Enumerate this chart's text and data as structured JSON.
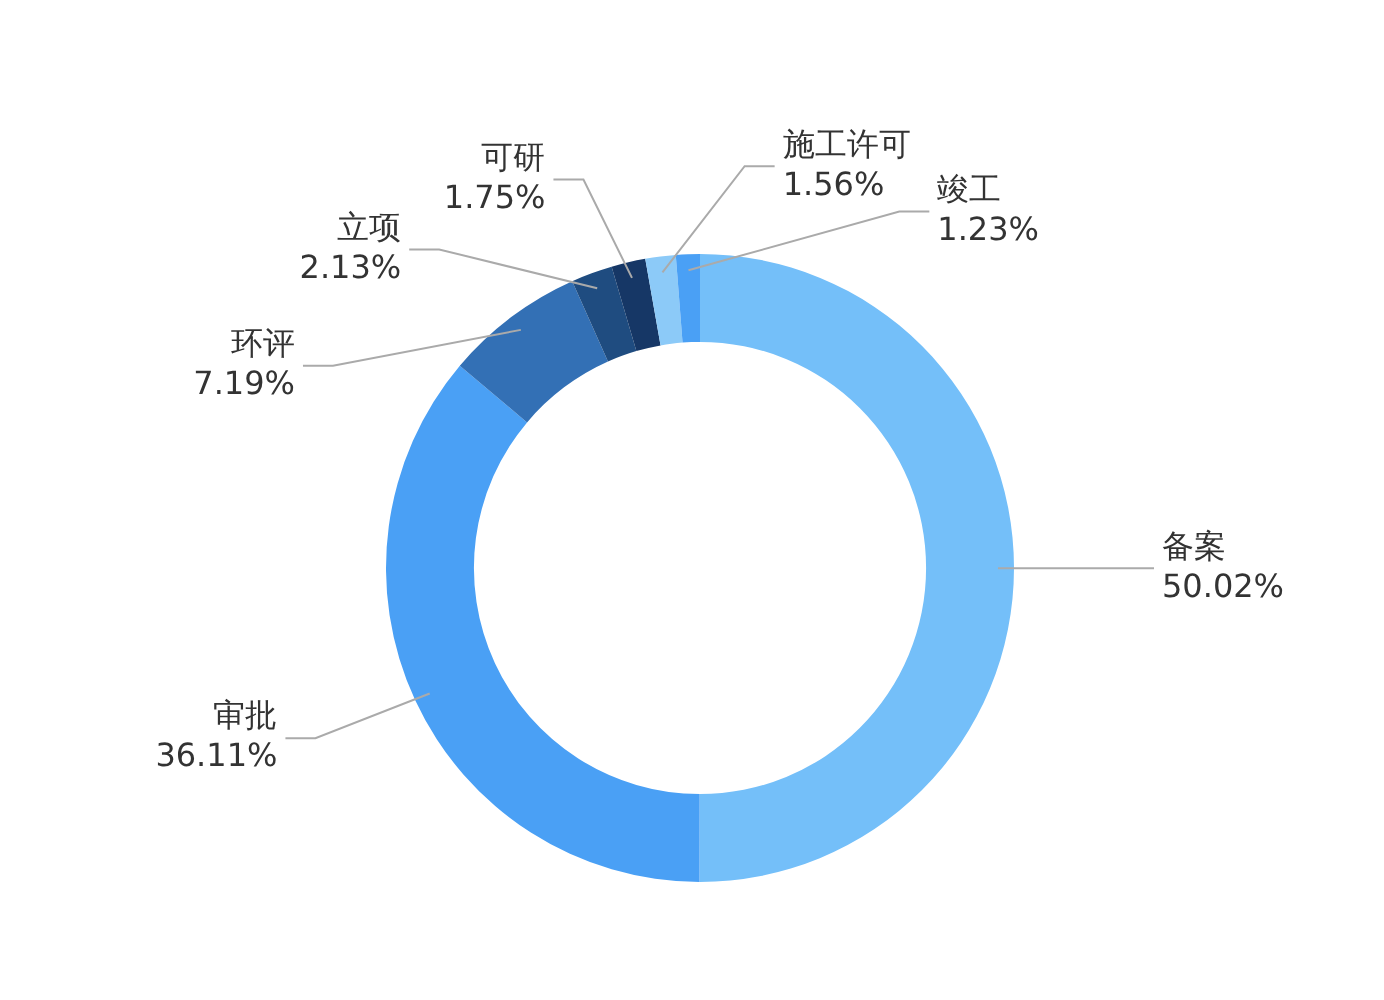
{
  "chart_data": {
    "type": "donut",
    "categories": [
      "备案",
      "审批",
      "环评",
      "立项",
      "可研",
      "施工许可",
      "竣工"
    ],
    "values": [
      50.02,
      36.11,
      7.19,
      2.13,
      1.75,
      1.56,
      1.23
    ],
    "colors": [
      "#74bff9",
      "#4aa0f5",
      "#3370b5",
      "#1f4c80",
      "#163766",
      "#8ccaf8",
      "#4aa0f5"
    ],
    "value_labels": [
      "50.02%",
      "36.11%",
      "7.19%",
      "2.13%",
      "1.75%",
      "1.56%",
      "1.23%"
    ],
    "legend": false
  }
}
